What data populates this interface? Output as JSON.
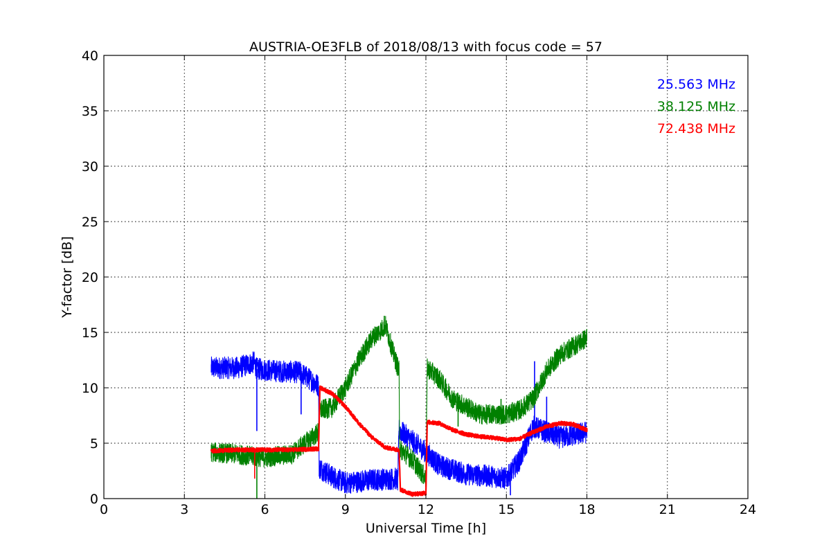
{
  "chart_data": {
    "type": "line",
    "title": "AUSTRIA-OE3FLB of 2018/08/13 with focus code = 57",
    "xlabel": "Universal Time [h]",
    "ylabel": "Y-factor [dB]",
    "xlim": [
      0,
      24
    ],
    "ylim": [
      0,
      40
    ],
    "x_ticks": [
      0,
      3,
      6,
      9,
      12,
      15,
      18,
      21,
      24
    ],
    "y_ticks": [
      0,
      5,
      10,
      15,
      20,
      25,
      30,
      35,
      40
    ],
    "grid": true,
    "legend_position": "top-right",
    "series": [
      {
        "name": "25.563 MHz",
        "color": "#0000ff",
        "noise": 1.0,
        "points": [
          [
            4.0,
            11.8
          ],
          [
            5.0,
            11.8
          ],
          [
            5.6,
            12.3
          ],
          [
            5.7,
            11.7
          ],
          [
            6.5,
            11.5
          ],
          [
            7.3,
            11.4
          ],
          [
            8.0,
            10.2
          ],
          [
            8.02,
            2.8
          ],
          [
            8.5,
            2.0
          ],
          [
            9.0,
            1.4
          ],
          [
            10.0,
            1.7
          ],
          [
            10.9,
            1.8
          ],
          [
            10.95,
            1.6
          ],
          [
            11.0,
            6.2
          ],
          [
            11.5,
            5.2
          ],
          [
            12.0,
            4.2
          ],
          [
            12.5,
            3.0
          ],
          [
            13.5,
            2.2
          ],
          [
            14.5,
            2.0
          ],
          [
            15.0,
            1.8
          ],
          [
            15.5,
            3.5
          ],
          [
            16.0,
            6.5
          ],
          [
            17.0,
            5.5
          ],
          [
            18.0,
            6.0
          ]
        ],
        "spikes": [
          [
            5.7,
            6.1
          ],
          [
            7.35,
            7.6
          ],
          [
            15.15,
            0.3
          ],
          [
            16.05,
            12.4
          ],
          [
            16.5,
            9.2
          ]
        ]
      },
      {
        "name": "38.125 MHz",
        "color": "#008000",
        "noise": 0.9,
        "points": [
          [
            4.0,
            4.2
          ],
          [
            5.0,
            4.0
          ],
          [
            5.6,
            3.8
          ],
          [
            6.0,
            3.7
          ],
          [
            7.0,
            4.0
          ],
          [
            7.5,
            5.0
          ],
          [
            8.0,
            6.0
          ],
          [
            8.05,
            8.0
          ],
          [
            8.5,
            8.2
          ],
          [
            9.0,
            10.0
          ],
          [
            9.5,
            12.5
          ],
          [
            10.0,
            14.5
          ],
          [
            10.5,
            15.6
          ],
          [
            10.8,
            13.0
          ],
          [
            11.0,
            11.5
          ],
          [
            11.02,
            4.5
          ],
          [
            11.5,
            3.5
          ],
          [
            12.0,
            1.8
          ],
          [
            12.05,
            11.8
          ],
          [
            12.5,
            10.8
          ],
          [
            13.0,
            9.0
          ],
          [
            14.0,
            7.6
          ],
          [
            15.0,
            7.6
          ],
          [
            15.5,
            8.0
          ],
          [
            16.0,
            9.0
          ],
          [
            16.5,
            11.5
          ],
          [
            17.0,
            13.0
          ],
          [
            18.0,
            14.5
          ]
        ],
        "spikes": [
          [
            5.7,
            0.0
          ],
          [
            10.45,
            16.5
          ],
          [
            14.8,
            9.0
          ],
          [
            13.2,
            6.5
          ]
        ]
      },
      {
        "name": "72.438 MHz",
        "color": "#ff0000",
        "noise": 0.18,
        "points": [
          [
            4.0,
            4.3
          ],
          [
            5.0,
            4.4
          ],
          [
            6.0,
            4.4
          ],
          [
            7.0,
            4.4
          ],
          [
            8.0,
            4.5
          ],
          [
            8.05,
            10.0
          ],
          [
            8.5,
            9.5
          ],
          [
            9.0,
            8.3
          ],
          [
            9.5,
            6.8
          ],
          [
            10.0,
            5.5
          ],
          [
            10.5,
            4.6
          ],
          [
            11.0,
            4.4
          ],
          [
            11.05,
            0.8
          ],
          [
            11.5,
            0.4
          ],
          [
            12.0,
            0.5
          ],
          [
            12.05,
            6.9
          ],
          [
            12.5,
            6.8
          ],
          [
            13.0,
            6.2
          ],
          [
            13.5,
            5.8
          ],
          [
            14.0,
            5.6
          ],
          [
            14.5,
            5.5
          ],
          [
            15.0,
            5.3
          ],
          [
            15.5,
            5.4
          ],
          [
            16.0,
            6.0
          ],
          [
            16.5,
            6.5
          ],
          [
            17.0,
            6.8
          ],
          [
            17.5,
            6.7
          ],
          [
            18.0,
            6.2
          ]
        ],
        "spikes": [
          [
            5.62,
            1.8
          ]
        ]
      }
    ]
  }
}
